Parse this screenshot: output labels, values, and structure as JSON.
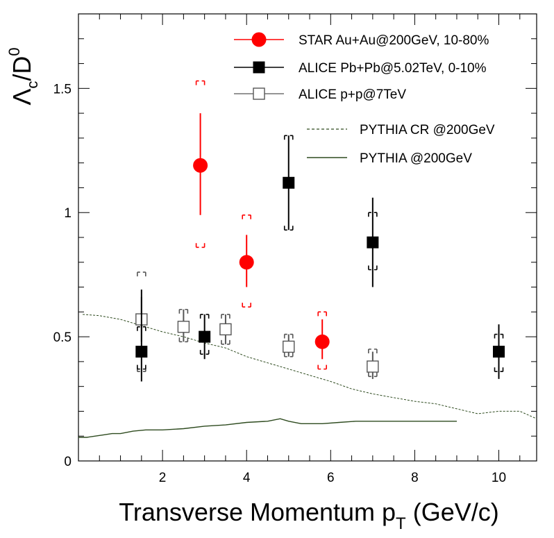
{
  "chart_data": {
    "type": "scatter",
    "title": "",
    "xlabel": {
      "main": "Transverse Momentum p",
      "sub": "T",
      "unit": " (GeV/c)"
    },
    "ylabel": {
      "lambda": "Λ",
      "lambda_sub": "c",
      "slash": "/D",
      "d_sup": "0"
    },
    "xlim": [
      0,
      10.9
    ],
    "ylim": [
      0,
      1.8
    ],
    "x_ticks": [
      2,
      4,
      6,
      8,
      10
    ],
    "y_ticks": [
      0,
      0.5,
      1,
      1.5
    ],
    "x_tick_labels": [
      "2",
      "4",
      "6",
      "8",
      "10"
    ],
    "y_tick_labels": [
      "0",
      "0.5",
      "1",
      "1.5"
    ],
    "grid": false,
    "legend_position": "top-right",
    "series": [
      {
        "name": "STAR Au+Au@200GeV, 10-80%",
        "marker": "filled-circle",
        "color": "#ff0000",
        "points": [
          {
            "x": 2.9,
            "y": 1.19,
            "stat": [
              0.99,
              1.4
            ],
            "sys": [
              0.86,
              1.53
            ]
          },
          {
            "x": 4.0,
            "y": 0.8,
            "stat": [
              0.7,
              0.91
            ],
            "sys": [
              0.62,
              0.99
            ]
          },
          {
            "x": 5.8,
            "y": 0.48,
            "stat": [
              0.41,
              0.57
            ],
            "sys": [
              0.37,
              0.6
            ]
          }
        ]
      },
      {
        "name": "ALICE Pb+Pb@5.02TeV, 0-10%",
        "marker": "filled-square",
        "color": "#000000",
        "points": [
          {
            "x": 1.5,
            "y": 0.44,
            "stat": [
              0.32,
              0.69
            ],
            "sys": [
              0.37,
              0.54
            ]
          },
          {
            "x": 3.0,
            "y": 0.5,
            "stat": [
              0.41,
              0.59
            ],
            "sys": [
              0.43,
              0.59
            ]
          },
          {
            "x": 5.0,
            "y": 1.12,
            "stat": [
              0.93,
              1.31
            ],
            "sys": [
              0.93,
              1.31
            ]
          },
          {
            "x": 7.0,
            "y": 0.88,
            "stat": [
              0.7,
              1.06
            ],
            "sys": [
              0.77,
              1.0
            ]
          },
          {
            "x": 10.0,
            "y": 0.44,
            "stat": [
              0.33,
              0.55
            ],
            "sys": [
              0.36,
              0.51
            ]
          }
        ]
      },
      {
        "name": "ALICE p+p@7TeV",
        "marker": "open-square",
        "color": "#000000",
        "points": [
          {
            "x": 1.5,
            "y": 0.57,
            "stat": [
              0.48,
              0.66
            ],
            "sys": [
              0.36,
              0.76
            ]
          },
          {
            "x": 2.5,
            "y": 0.54,
            "stat": [
              0.48,
              0.61
            ],
            "sys": [
              0.48,
              0.61
            ]
          },
          {
            "x": 3.5,
            "y": 0.53,
            "stat": [
              0.47,
              0.59
            ],
            "sys": [
              0.47,
              0.59
            ]
          },
          {
            "x": 5.0,
            "y": 0.46,
            "stat": [
              0.42,
              0.51
            ],
            "sys": [
              0.42,
              0.51
            ]
          },
          {
            "x": 7.0,
            "y": 0.38,
            "stat": [
              0.33,
              0.44
            ],
            "sys": [
              0.34,
              0.45
            ]
          }
        ]
      },
      {
        "name": "PYTHIA CR @200GeV",
        "type": "line",
        "style": "dashed",
        "color": "#2d4a1e",
        "x": [
          0.1,
          0.5,
          1.0,
          1.5,
          2.0,
          2.5,
          3.0,
          3.5,
          4.0,
          4.5,
          5.0,
          5.5,
          6.0,
          6.5,
          7.0,
          7.5,
          8.0,
          8.5,
          9.0,
          9.5,
          10.0,
          10.5,
          10.9
        ],
        "y": [
          0.59,
          0.585,
          0.57,
          0.545,
          0.52,
          0.5,
          0.475,
          0.455,
          0.42,
          0.395,
          0.37,
          0.345,
          0.32,
          0.29,
          0.27,
          0.255,
          0.24,
          0.23,
          0.21,
          0.19,
          0.2,
          0.2,
          0.17
        ]
      },
      {
        "name": "PYTHIA @200GeV",
        "type": "line",
        "style": "solid",
        "color": "#2d4a1e",
        "x": [
          0.0,
          0.2,
          0.4,
          0.6,
          0.8,
          1.0,
          1.3,
          1.6,
          2.0,
          2.5,
          3.0,
          3.5,
          4.0,
          4.5,
          4.8,
          5.0,
          5.3,
          5.8,
          6.2,
          6.6,
          7.0,
          8.0,
          9.0
        ],
        "y": [
          0.095,
          0.095,
          0.1,
          0.105,
          0.11,
          0.11,
          0.12,
          0.125,
          0.125,
          0.13,
          0.14,
          0.145,
          0.155,
          0.16,
          0.17,
          0.16,
          0.15,
          0.15,
          0.155,
          0.16,
          0.16,
          0.16,
          0.16
        ]
      }
    ]
  }
}
